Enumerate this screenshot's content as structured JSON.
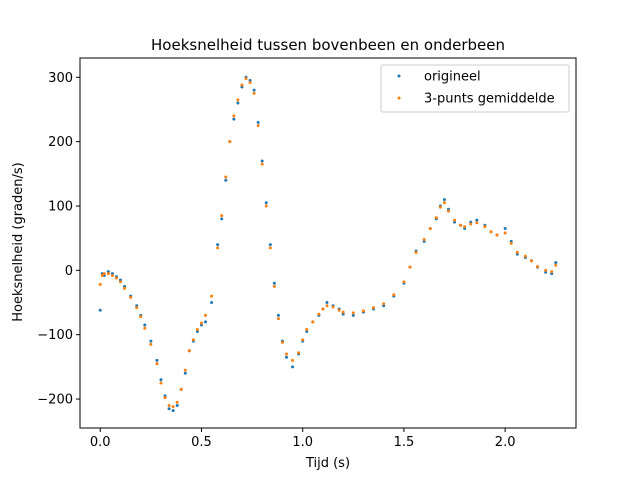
{
  "chart_data": {
    "type": "scatter",
    "title": "Hoeksnelheid tussen bovenbeen en onderbeen",
    "xlabel": "Tijd (s)",
    "ylabel": "Hoeksnelheid (graden/s)",
    "xlim": [
      -0.1,
      2.35
    ],
    "ylim": [
      -245,
      330
    ],
    "xticks": [
      0.0,
      0.5,
      1.0,
      1.5,
      2.0
    ],
    "xtick_labels": [
      "0.0",
      "0.5",
      "1.0",
      "1.5",
      "2.0"
    ],
    "yticks": [
      -200,
      -100,
      0,
      100,
      200,
      300
    ],
    "ytick_labels": [
      "−200",
      "−100",
      "0",
      "100",
      "200",
      "300"
    ],
    "grid": false,
    "legend_position": "top-right",
    "series": [
      {
        "name": "origineel",
        "color": "#1f77b4",
        "x": [
          0.0,
          0.01,
          0.02,
          0.04,
          0.06,
          0.08,
          0.1,
          0.12,
          0.15,
          0.18,
          0.2,
          0.22,
          0.25,
          0.28,
          0.3,
          0.32,
          0.34,
          0.36,
          0.38,
          0.4,
          0.42,
          0.44,
          0.46,
          0.48,
          0.5,
          0.52,
          0.55,
          0.58,
          0.6,
          0.62,
          0.64,
          0.66,
          0.68,
          0.7,
          0.72,
          0.74,
          0.76,
          0.78,
          0.8,
          0.82,
          0.84,
          0.86,
          0.88,
          0.9,
          0.92,
          0.95,
          0.98,
          1.0,
          1.02,
          1.05,
          1.08,
          1.1,
          1.12,
          1.15,
          1.18,
          1.2,
          1.25,
          1.3,
          1.35,
          1.4,
          1.45,
          1.5,
          1.53,
          1.56,
          1.6,
          1.63,
          1.66,
          1.68,
          1.7,
          1.72,
          1.75,
          1.78,
          1.8,
          1.83,
          1.86,
          1.9,
          1.93,
          1.96,
          2.0,
          2.03,
          2.06,
          2.1,
          2.13,
          2.16,
          2.2,
          2.23,
          2.25
        ],
        "y": [
          -62,
          -5,
          -8,
          -2,
          -5,
          -10,
          -15,
          -25,
          -40,
          -55,
          -70,
          -85,
          -110,
          -140,
          -170,
          -195,
          -215,
          -218,
          -210,
          -185,
          -160,
          -125,
          -110,
          -95,
          -85,
          -80,
          -50,
          40,
          80,
          140,
          200,
          235,
          260,
          285,
          300,
          295,
          280,
          230,
          170,
          105,
          40,
          -20,
          -70,
          -110,
          -135,
          -150,
          -130,
          -110,
          -95,
          -80,
          -70,
          -60,
          -50,
          -55,
          -60,
          -68,
          -70,
          -65,
          -60,
          -55,
          -40,
          -20,
          5,
          30,
          45,
          65,
          80,
          100,
          110,
          95,
          75,
          70,
          65,
          75,
          78,
          70,
          60,
          55,
          65,
          45,
          25,
          20,
          15,
          5,
          -3,
          -5,
          12
        ]
      },
      {
        "name": "3-punts gemiddelde",
        "color": "#ff7f0e",
        "x": [
          0.0,
          0.01,
          0.02,
          0.04,
          0.06,
          0.08,
          0.1,
          0.12,
          0.15,
          0.18,
          0.2,
          0.22,
          0.25,
          0.28,
          0.3,
          0.32,
          0.34,
          0.36,
          0.38,
          0.4,
          0.42,
          0.44,
          0.46,
          0.48,
          0.5,
          0.52,
          0.55,
          0.58,
          0.6,
          0.62,
          0.64,
          0.66,
          0.68,
          0.7,
          0.72,
          0.74,
          0.76,
          0.78,
          0.8,
          0.82,
          0.84,
          0.86,
          0.88,
          0.9,
          0.92,
          0.95,
          0.98,
          1.0,
          1.02,
          1.05,
          1.08,
          1.1,
          1.12,
          1.15,
          1.18,
          1.2,
          1.25,
          1.3,
          1.35,
          1.4,
          1.45,
          1.5,
          1.53,
          1.56,
          1.6,
          1.63,
          1.66,
          1.68,
          1.7,
          1.72,
          1.75,
          1.78,
          1.8,
          1.83,
          1.86,
          1.9,
          1.93,
          1.96,
          2.0,
          2.03,
          2.06,
          2.1,
          2.13,
          2.16,
          2.2,
          2.23,
          2.25
        ],
        "y": [
          -22,
          -8,
          -5,
          -5,
          -8,
          -12,
          -18,
          -28,
          -42,
          -58,
          -72,
          -90,
          -115,
          -145,
          -175,
          -198,
          -210,
          -212,
          -205,
          -185,
          -155,
          -125,
          -108,
          -92,
          -82,
          -70,
          -40,
          35,
          85,
          145,
          200,
          240,
          265,
          288,
          298,
          292,
          275,
          225,
          165,
          100,
          35,
          -25,
          -75,
          -112,
          -130,
          -140,
          -128,
          -108,
          -92,
          -80,
          -68,
          -60,
          -55,
          -57,
          -62,
          -65,
          -66,
          -63,
          -58,
          -52,
          -38,
          -18,
          5,
          28,
          48,
          65,
          82,
          98,
          105,
          92,
          78,
          70,
          68,
          72,
          74,
          68,
          60,
          55,
          58,
          42,
          28,
          22,
          15,
          6,
          0,
          -2,
          8
        ]
      }
    ]
  }
}
